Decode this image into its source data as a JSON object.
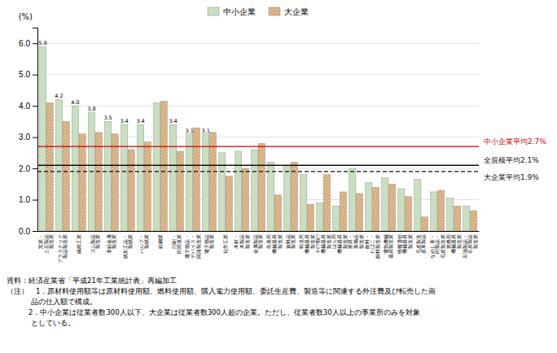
{
  "chart_data": {
    "type": "bar",
    "categories": [
      "窯業・\n土石製品\n製造業",
      "プラスチック\n製品製造業",
      "繊維工業",
      "ゴム製品\n製造業",
      "非鉄金属\n製造業",
      "紙加工品・\n製紙業",
      "パルプ・\n製紙業",
      "鉄鋼業",
      "印刷・\n同関連業",
      "電子部品・\nデバイス・\n回路製造業",
      "電子部品\n製造業",
      "化学工業",
      "木材・\n木製品\n製造業",
      "金属製品\n製造業",
      "生産用\n機械器具\n製造業",
      "食料品\n製造業",
      "輸送用\n機械器具\n製造業",
      "その他の\n機械器具\n製造業",
      "はん用\n機械器具\n製造業",
      "家具・\n装備品\n製造業",
      "飲料・\nたばこ・\n飼料製造業",
      "電気機械\n器具製造業",
      "情報通信\n機械器具\n製造業",
      "毛皮製造\n皮革製品",
      "なめし革・\n同製品・\n毛皮製造業",
      "業務用\n機械器具\n製造業",
      "石油製品・\n石炭製品\n製造業"
    ],
    "series": [
      {
        "name": "中小企業",
        "color": "#c8dfc0",
        "values": [
          5.9,
          4.2,
          4.0,
          3.8,
          3.5,
          3.4,
          3.4,
          4.1,
          3.4,
          3.1,
          3.1,
          2.5,
          2.55,
          2.6,
          2.2,
          2.1,
          1.8,
          0.9,
          0.8,
          2.0,
          1.55,
          1.7,
          1.35,
          1.65,
          1.25,
          1.05,
          0.8
        ],
        "value_labels": [
          "5.9",
          "4.2",
          "4.0",
          "3.8",
          "3.5",
          "3.4",
          "3.4",
          null,
          "3.4",
          "3.1",
          "3.1",
          null,
          null,
          null,
          null,
          null,
          null,
          null,
          null,
          null,
          null,
          null,
          null,
          null,
          null,
          null,
          null
        ]
      },
      {
        "name": "大企業",
        "color": "#e8c090",
        "values": [
          4.1,
          3.5,
          3.1,
          3.15,
          3.1,
          2.6,
          2.85,
          4.15,
          2.55,
          3.3,
          3.15,
          1.75,
          2.0,
          2.8,
          1.15,
          2.2,
          0.85,
          1.8,
          1.25,
          1.2,
          1.4,
          1.5,
          1.1,
          0.45,
          1.3,
          0.8,
          0.65
        ]
      }
    ],
    "data_labels": true,
    "ylabel": "(%)",
    "ylim": [
      0,
      6.5
    ],
    "yticks": [
      {
        "value": 0,
        "label": "0.0"
      },
      {
        "value": 1,
        "label": "1.0"
      },
      {
        "value": 2,
        "label": "2.0"
      },
      {
        "value": 3,
        "label": "3.0"
      },
      {
        "value": 4,
        "label": "4.0"
      },
      {
        "value": 5,
        "label": "5.0"
      },
      {
        "value": 6,
        "label": "6.0"
      }
    ],
    "grid": true,
    "legend": "top",
    "annotations": [
      {
        "text": "中小企業平均2.7%",
        "value": 2.7,
        "color": "#cc0000",
        "line_style": "solid"
      },
      {
        "text": "全規模平均2.1%",
        "value": 2.1,
        "color": "#111111",
        "line_style": "solid"
      },
      {
        "text": "大企業平均1.9%",
        "value": 1.9,
        "color": "#111111",
        "line_style": "dashed"
      }
    ],
    "notes": [
      "資料：経済産業省「平成21年工業統計表」再編加工",
      "（注）　1．原材料使用額等は原材料使用額、燃料使用額、購入電力使用額、委託生産費、製造等に関連する外注費及び転売した商",
      "品の仕入額で構成。",
      "　　　2．中小企業は従業者数300人以下、大企業は従業者数300人超の企業。ただし、従業者数30人以上の事業所のみを対象",
      "としている。"
    ]
  }
}
